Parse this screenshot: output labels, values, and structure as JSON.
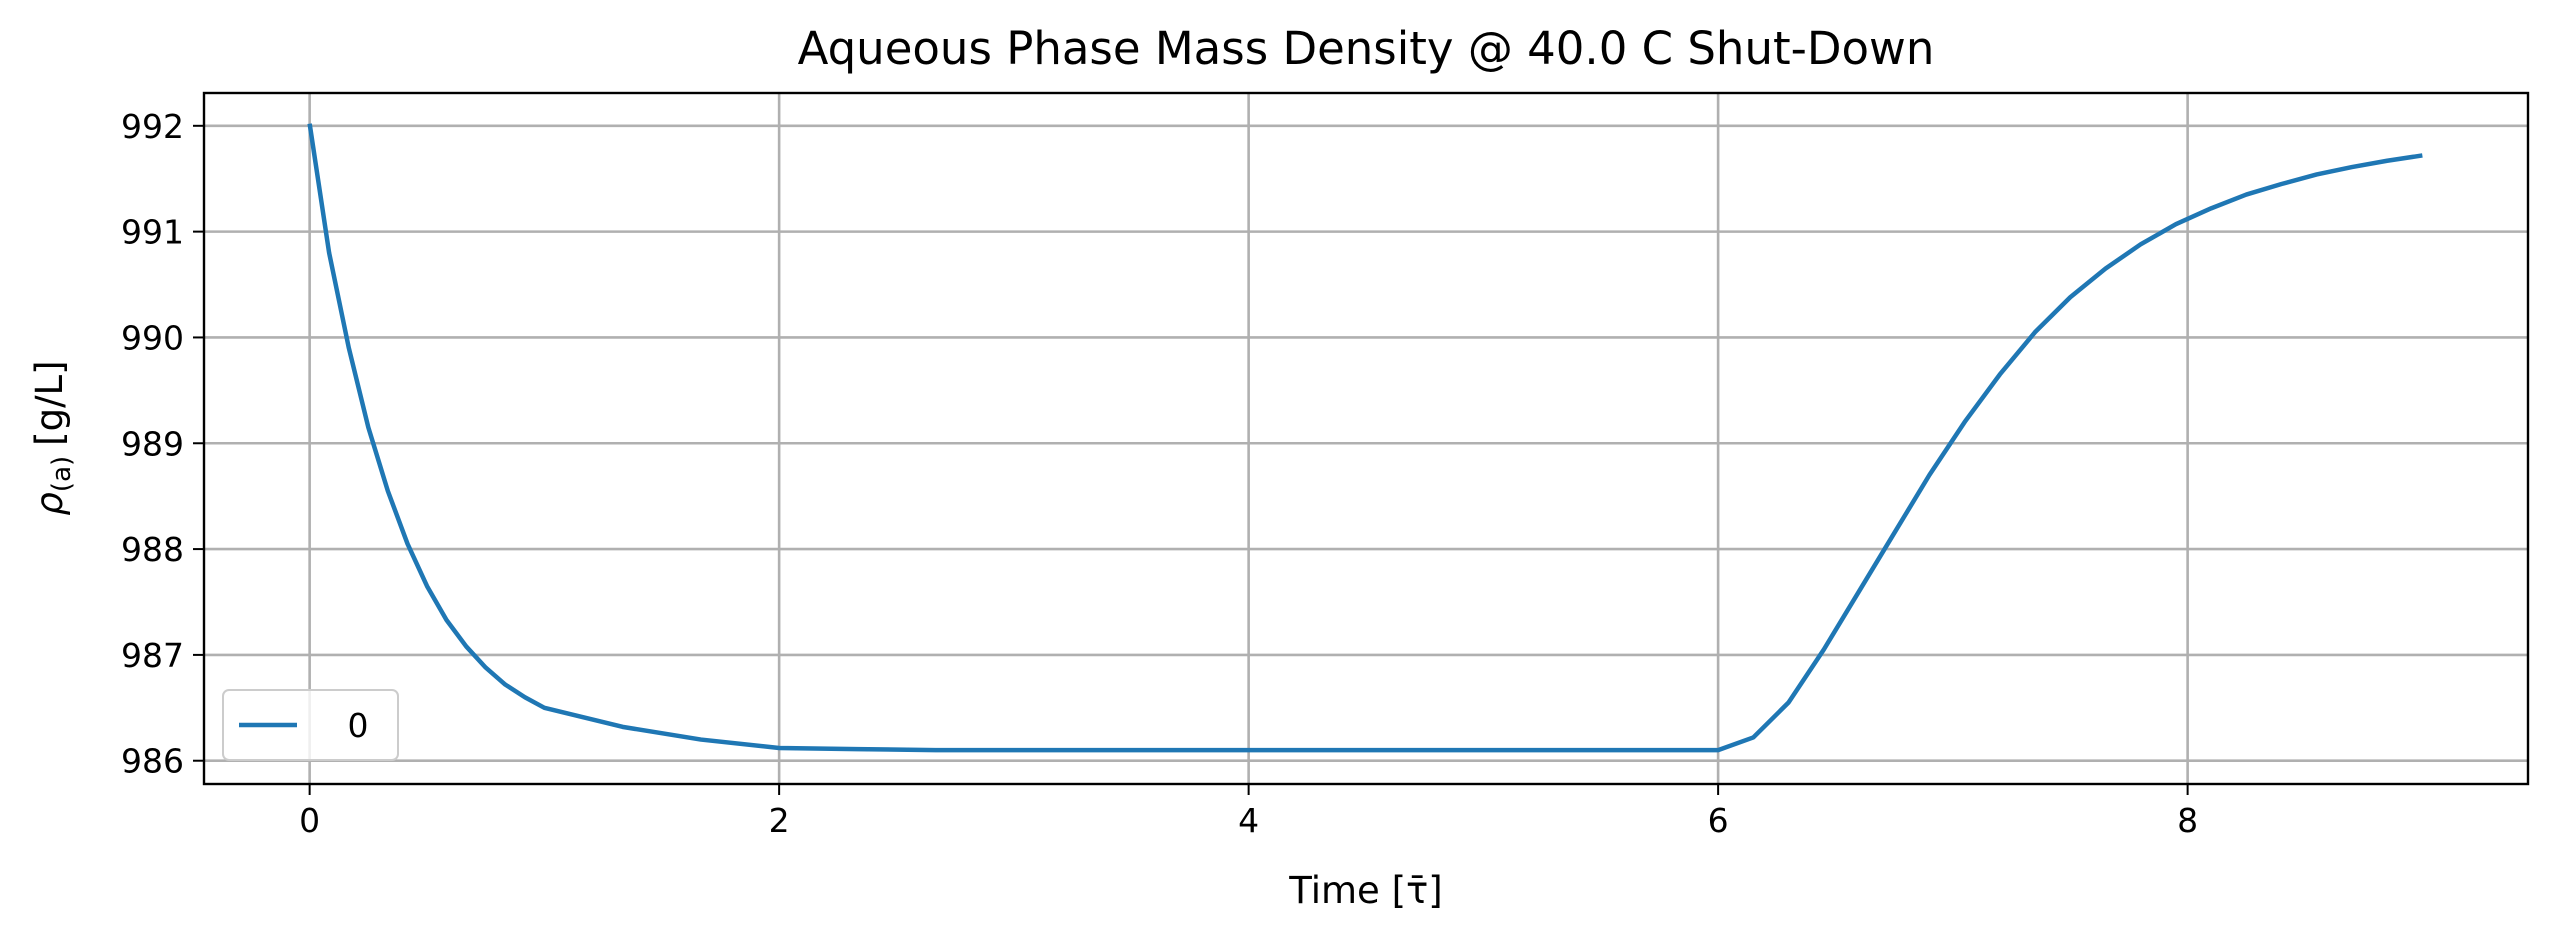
{
  "chart_data": {
    "type": "line",
    "title": "Aqueous Phase Mass Density @ 40.0 C Shut-Down",
    "x_label": "Time [τ̄]",
    "y_label": {
      "symbol": "ρ",
      "subscript": "(a)",
      "unit": "[g/L]"
    },
    "x": [
      0,
      0.083,
      0.167,
      0.25,
      0.333,
      0.417,
      0.5,
      0.583,
      0.667,
      0.75,
      0.833,
      0.917,
      1.0,
      1.333,
      1.667,
      2.0,
      2.333,
      2.667,
      3.0,
      3.333,
      3.667,
      4.0,
      4.333,
      4.667,
      5.0,
      5.333,
      5.667,
      6.0,
      6.15,
      6.3,
      6.45,
      6.6,
      6.75,
      6.9,
      7.05,
      7.2,
      7.35,
      7.5,
      7.65,
      7.8,
      7.95,
      8.1,
      8.25,
      8.4,
      8.55,
      8.7,
      8.85,
      9.0
    ],
    "series": [
      {
        "name": "0",
        "color": "#1f77b4",
        "values": [
          992.02,
          990.8,
          989.9,
          989.15,
          988.55,
          988.05,
          987.65,
          987.33,
          987.08,
          986.88,
          986.72,
          986.6,
          986.5,
          986.32,
          986.2,
          986.12,
          986.11,
          986.1,
          986.1,
          986.1,
          986.1,
          986.1,
          986.1,
          986.1,
          986.1,
          986.1,
          986.1,
          986.1,
          986.22,
          986.55,
          987.05,
          987.6,
          988.15,
          988.7,
          989.2,
          989.65,
          990.05,
          990.38,
          990.65,
          990.88,
          991.07,
          991.22,
          991.35,
          991.45,
          991.54,
          991.61,
          991.67,
          991.72
        ]
      }
    ],
    "xlim": [
      -0.45,
      9.45
    ],
    "xticks": [
      0,
      2,
      4,
      6,
      8
    ],
    "ylim": [
      985.78,
      992.31
    ],
    "yticks": [
      986,
      987,
      988,
      989,
      990,
      991,
      992
    ],
    "grid": true,
    "legend": "lower left"
  }
}
